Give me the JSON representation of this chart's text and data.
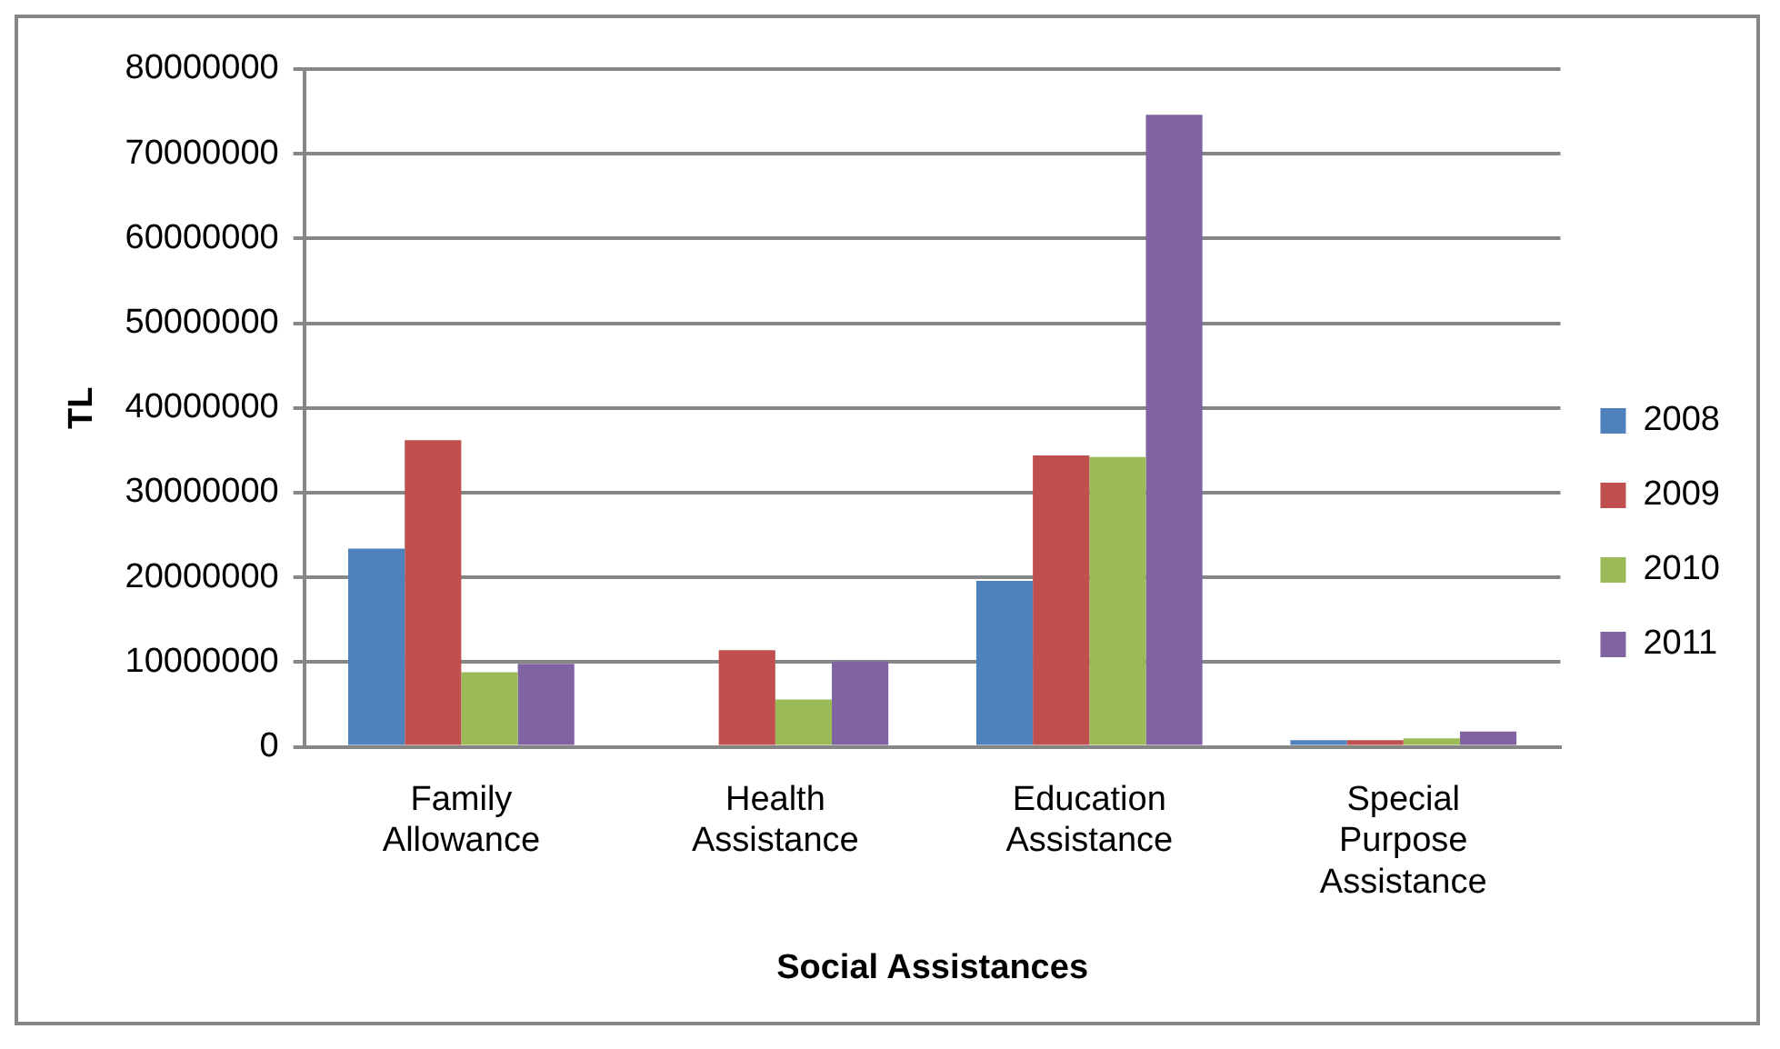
{
  "chart_data": {
    "type": "bar",
    "xlabel": "Social Assistances",
    "ylabel": "TL",
    "categories": [
      "Family Allowance",
      "Health Assistance",
      "Education Assistance",
      "Special Purpose Assistance"
    ],
    "series": [
      {
        "name": "2008",
        "color": "#4f81bd",
        "values": [
          23400000,
          0,
          19600000,
          800000
        ]
      },
      {
        "name": "2009",
        "color": "#c0504d",
        "values": [
          36200000,
          11400000,
          34400000,
          800000
        ]
      },
      {
        "name": "2010",
        "color": "#9bbb59",
        "values": [
          8800000,
          5600000,
          34200000,
          1000000
        ]
      },
      {
        "name": "2011",
        "color": "#8064a2",
        "values": [
          9800000,
          10100000,
          74600000,
          1800000
        ]
      }
    ],
    "ylim": [
      0,
      80000000
    ],
    "yticks": [
      0,
      10000000,
      20000000,
      30000000,
      40000000,
      50000000,
      60000000,
      70000000,
      80000000
    ],
    "grid": "y",
    "legend": "right"
  }
}
